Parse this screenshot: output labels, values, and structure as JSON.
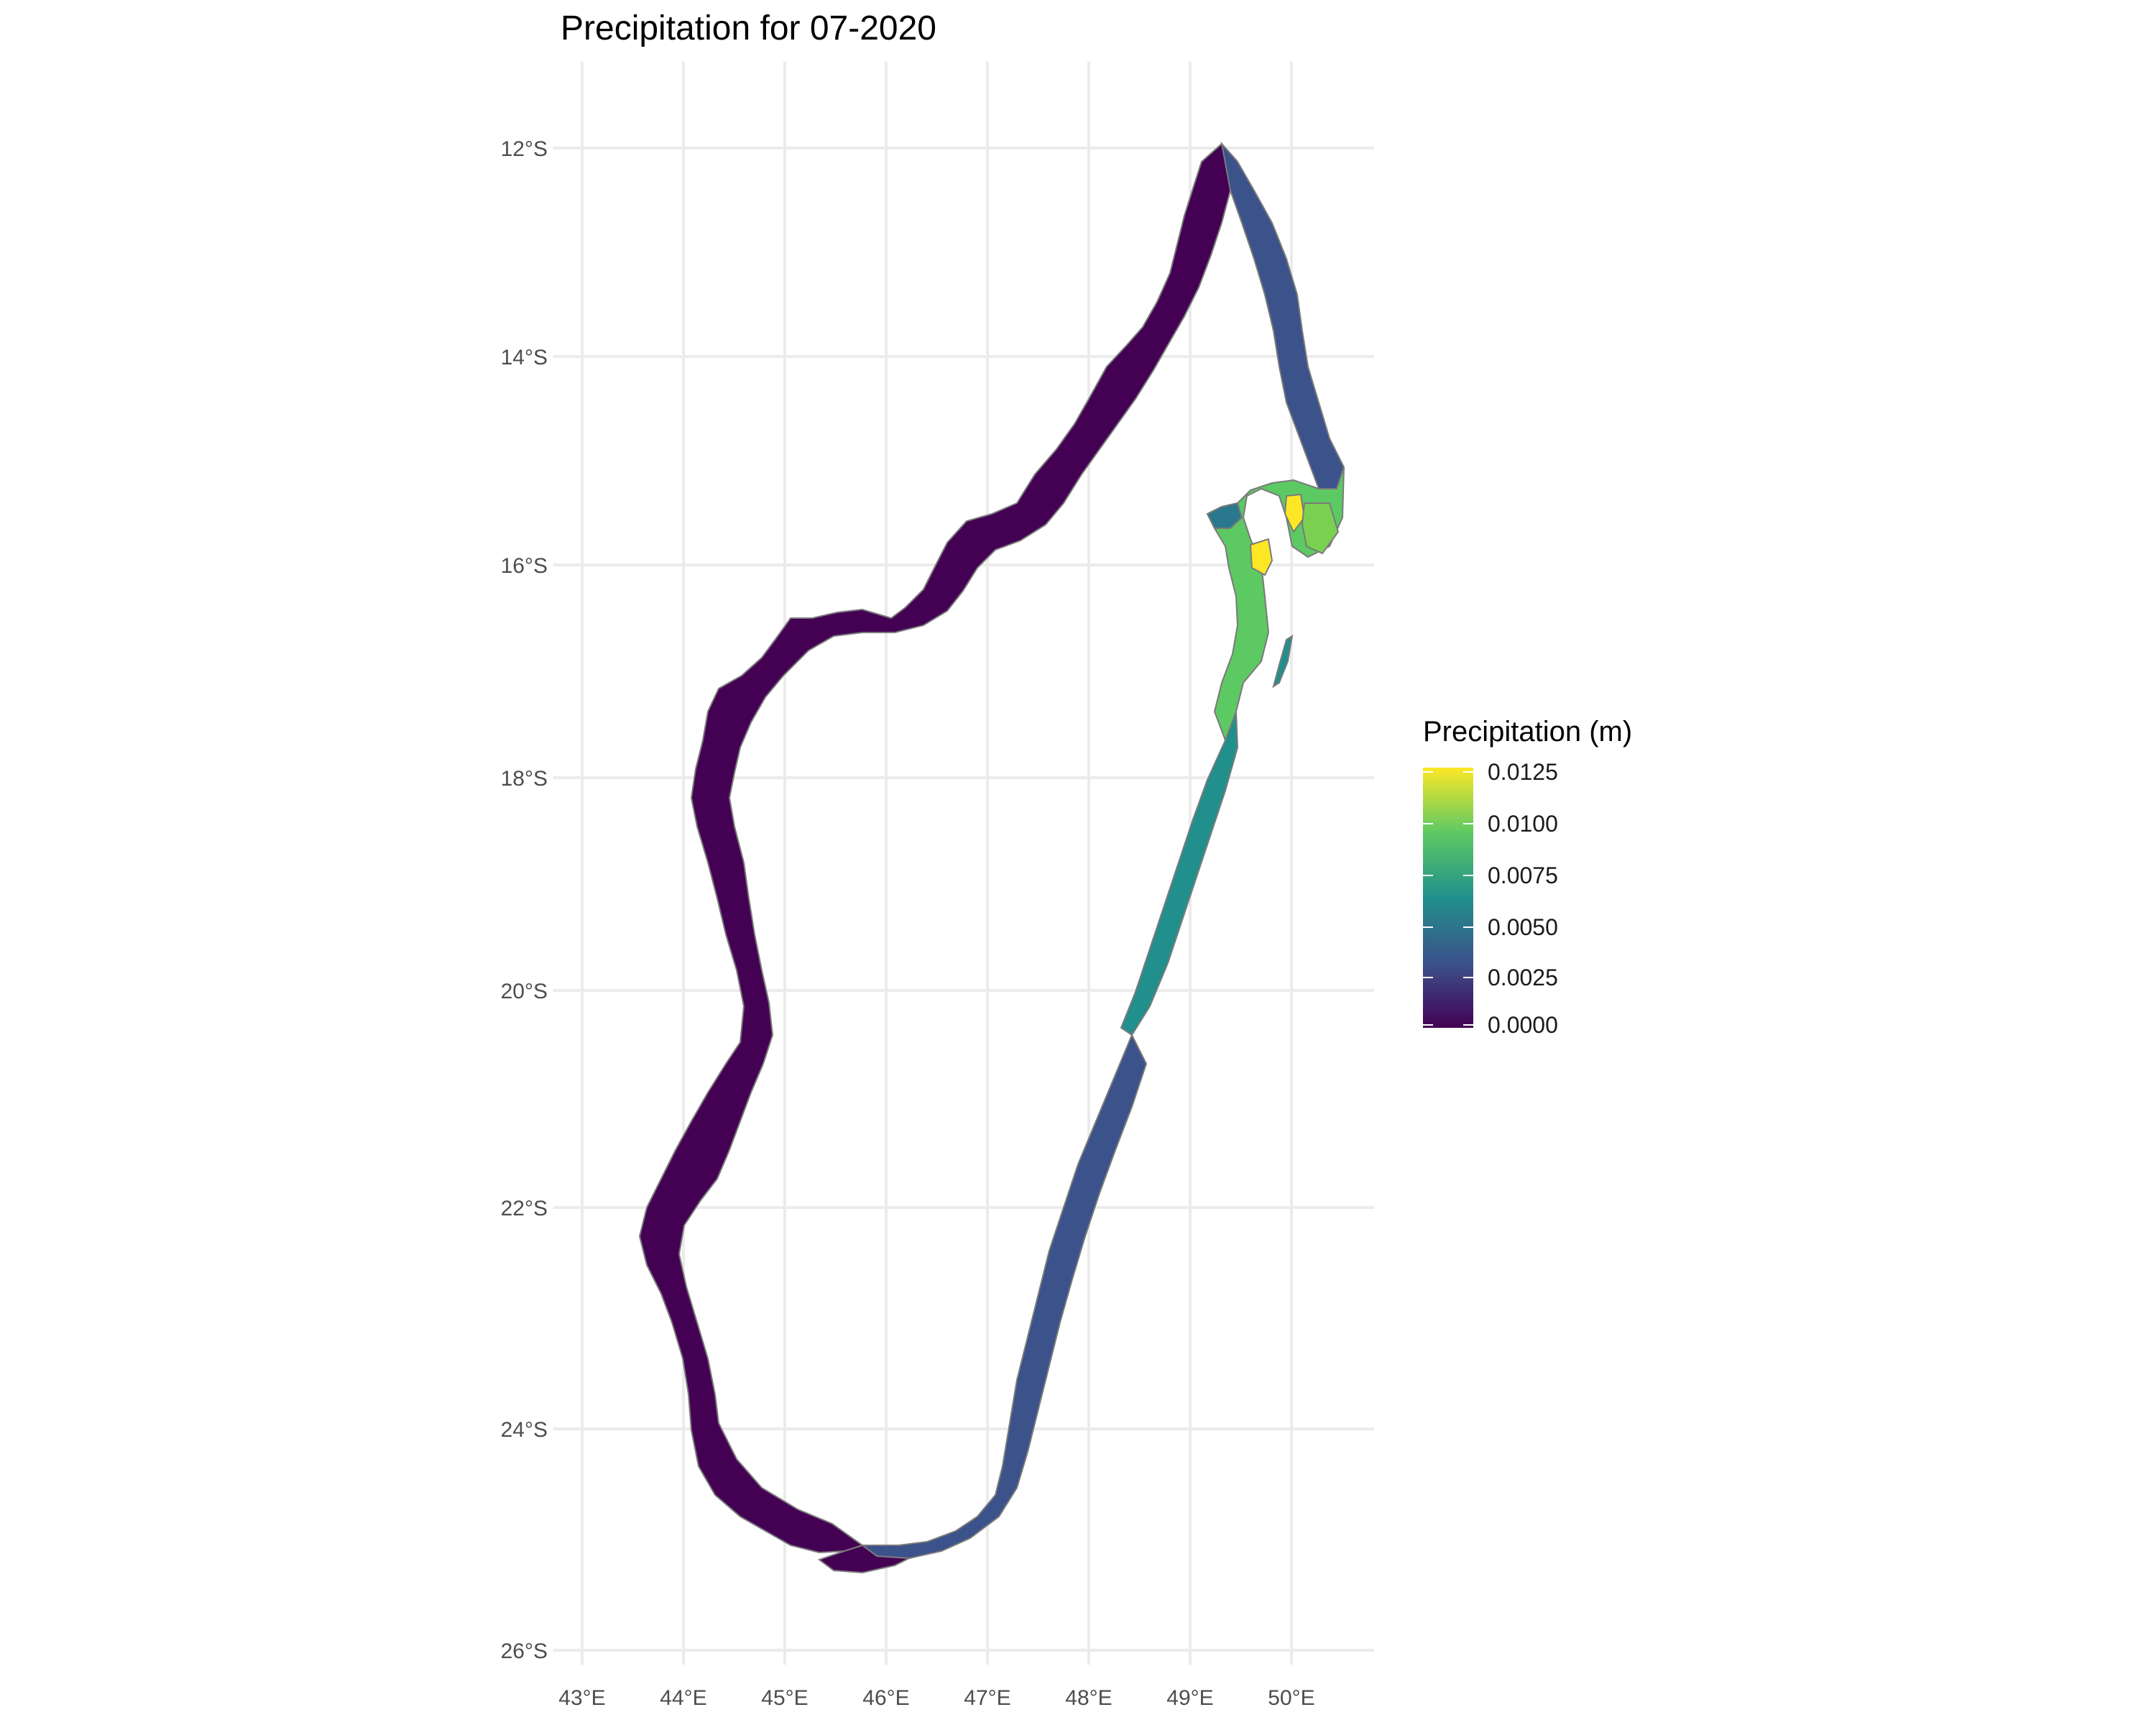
{
  "title": "Precipitation for 07-2020",
  "axes": {
    "x_ticks": [
      "43°E",
      "44°E",
      "45°E",
      "46°E",
      "47°E",
      "48°E",
      "49°E",
      "50°E"
    ],
    "y_ticks": [
      "12°S",
      "14°S",
      "16°S",
      "18°S",
      "20°S",
      "22°S",
      "24°S",
      "26°S"
    ]
  },
  "legend": {
    "title": "Precipitation (m)",
    "labels": [
      "0.0125",
      "0.0100",
      "0.0075",
      "0.0050",
      "0.0025",
      "0.0000"
    ],
    "values": [
      0.0125,
      0.01,
      0.0075,
      0.005,
      0.0025,
      0.0
    ],
    "range": [
      0.0,
      0.013
    ],
    "palette": "viridis",
    "colors": [
      "#440154",
      "#3b528b",
      "#21908c",
      "#5dc963",
      "#fde725"
    ]
  },
  "map": {
    "region": "Madagascar coastal districts",
    "background": "#ffffff",
    "gridline_color": "#ebebeb",
    "border_color": "#7a7a7a",
    "fill_by_area": {
      "west_and_north_coast": 0.0,
      "northeast_coast": 0.004,
      "antongil_bay_region": 0.0105,
      "antongil_bay_peak": 0.0125,
      "central_east_coast": 0.0055,
      "southeast_coast": 0.0025,
      "south_coast": 0.0005
    }
  }
}
